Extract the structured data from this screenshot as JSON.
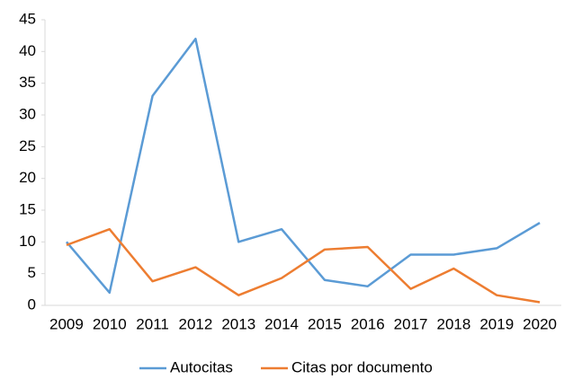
{
  "chart_data": {
    "type": "line",
    "categories": [
      "2009",
      "2010",
      "2011",
      "2012",
      "2013",
      "2014",
      "2015",
      "2016",
      "2017",
      "2018",
      "2019",
      "2020"
    ],
    "series": [
      {
        "name": "Autocitas",
        "color": "#5b9bd5",
        "values": [
          10,
          2,
          33,
          42,
          10,
          12,
          4,
          3,
          8,
          8,
          9,
          13
        ]
      },
      {
        "name": "Citas por documento",
        "color": "#ed7d31",
        "values": [
          9.5,
          12,
          3.8,
          6,
          1.6,
          4.3,
          8.8,
          9.2,
          2.6,
          5.8,
          1.6,
          0.5
        ]
      }
    ],
    "ylim": [
      0,
      45
    ],
    "yticks": [
      0,
      5,
      10,
      15,
      20,
      25,
      30,
      35,
      40,
      45
    ],
    "legend": "bottom"
  }
}
